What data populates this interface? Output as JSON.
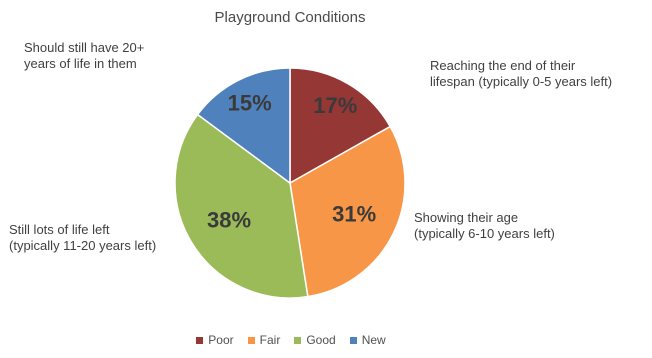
{
  "chart_data": {
    "type": "pie",
    "title": "Playground Conditions",
    "categories": [
      "Poor",
      "Fair",
      "Good",
      "New"
    ],
    "values": [
      17,
      31,
      38,
      15
    ],
    "value_labels": [
      "17%",
      "31%",
      "38%",
      "15%"
    ],
    "colors": [
      "#953735",
      "#f79646",
      "#9bbb59",
      "#4f81bd"
    ],
    "annotations": [
      "Reaching the end of their\nlifespan (typically 0-5 years left)",
      "Showing their age\n(typically 6-10 years left)",
      "Still lots of life left\n(typically 11-20 years left)",
      "Should still have 20+\nyears of life in them"
    ],
    "legend": "bottom"
  }
}
